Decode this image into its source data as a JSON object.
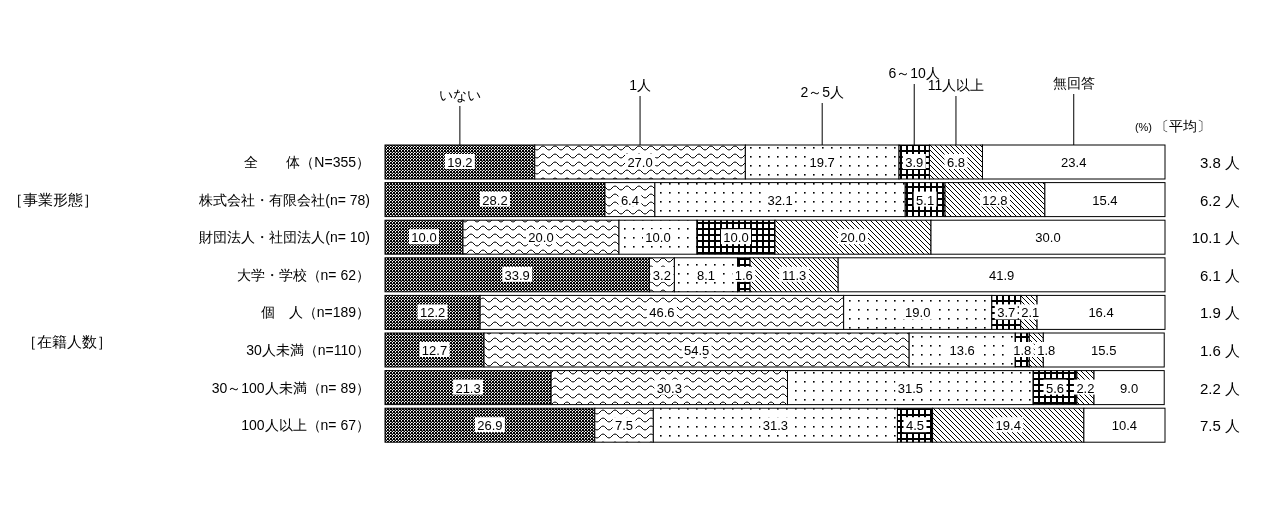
{
  "chart_data": {
    "type": "bar",
    "orientation": "horizontal",
    "stacked": true,
    "legend": "top",
    "tick_labels": "y",
    "categories": [
      "全　　体（N=355）",
      "株式会社・有限会社(n= 78)",
      "財団法人・社団法人(n= 10)",
      "大学・学校（n= 62）",
      "個　人（n=189）",
      "30人未満（n=110）",
      "30～100人未満（n= 89）",
      "100人以上（n= 67）"
    ],
    "series": [
      {
        "name": "いない",
        "color": "#000000",
        "values": [
          19.2,
          28.2,
          10.0,
          33.9,
          12.2,
          12.7,
          21.3,
          26.9
        ],
        "value_labels": [
          "19.2",
          "28.2",
          "10.0",
          "33.9",
          "12.2",
          "12.7",
          "21.3",
          "26.9"
        ]
      },
      {
        "name": "1人",
        "color": "#000000",
        "values": [
          27.0,
          6.4,
          20.0,
          3.2,
          46.6,
          54.5,
          30.3,
          7.5
        ],
        "value_labels": [
          "27.0",
          "6.4",
          "20.0",
          "3.2",
          "46.6",
          "54.5",
          "30.3",
          "7.5"
        ]
      },
      {
        "name": "2～5人",
        "color": "#000000",
        "values": [
          19.7,
          32.1,
          10.0,
          8.1,
          19.0,
          13.6,
          31.5,
          31.3
        ],
        "value_labels": [
          "19.7",
          "32.1",
          "10.0",
          "8.1",
          "19.0",
          "13.6",
          "31.5",
          "31.3"
        ]
      },
      {
        "name": "6～10人",
        "color": "#000000",
        "values": [
          3.9,
          5.1,
          10.0,
          1.6,
          3.7,
          1.8,
          5.6,
          4.5
        ],
        "value_labels": [
          "3.9",
          "5.1",
          "10.0",
          "1.6",
          "3.7",
          "1.8",
          "5.6",
          "4.5"
        ]
      },
      {
        "name": "11人以上",
        "color": "#000000",
        "values": [
          6.8,
          12.8,
          20.0,
          11.3,
          2.1,
          1.8,
          2.2,
          19.4
        ],
        "value_labels": [
          "6.8",
          "12.8",
          "20.0",
          "11.3",
          "2.1",
          "1.8",
          "2.2",
          "19.4"
        ]
      },
      {
        "name": "無回答",
        "color": "#ffffff",
        "values": [
          23.4,
          15.4,
          30.0,
          41.9,
          16.4,
          15.5,
          9.0,
          10.4
        ],
        "value_labels": [
          "23.4",
          "15.4",
          "30.0",
          "41.9",
          "16.4",
          "15.5",
          "9.0",
          "10.4"
        ]
      }
    ],
    "annotations": [
      "(%)",
      "〔平均〕",
      "［事業形態］",
      "［在籍人数］",
      "3.8 人",
      "6.2 人",
      "10.1 人",
      "6.1 人",
      "1.9 人",
      "1.6 人",
      "2.2 人",
      "7.5 人"
    ]
  }
}
